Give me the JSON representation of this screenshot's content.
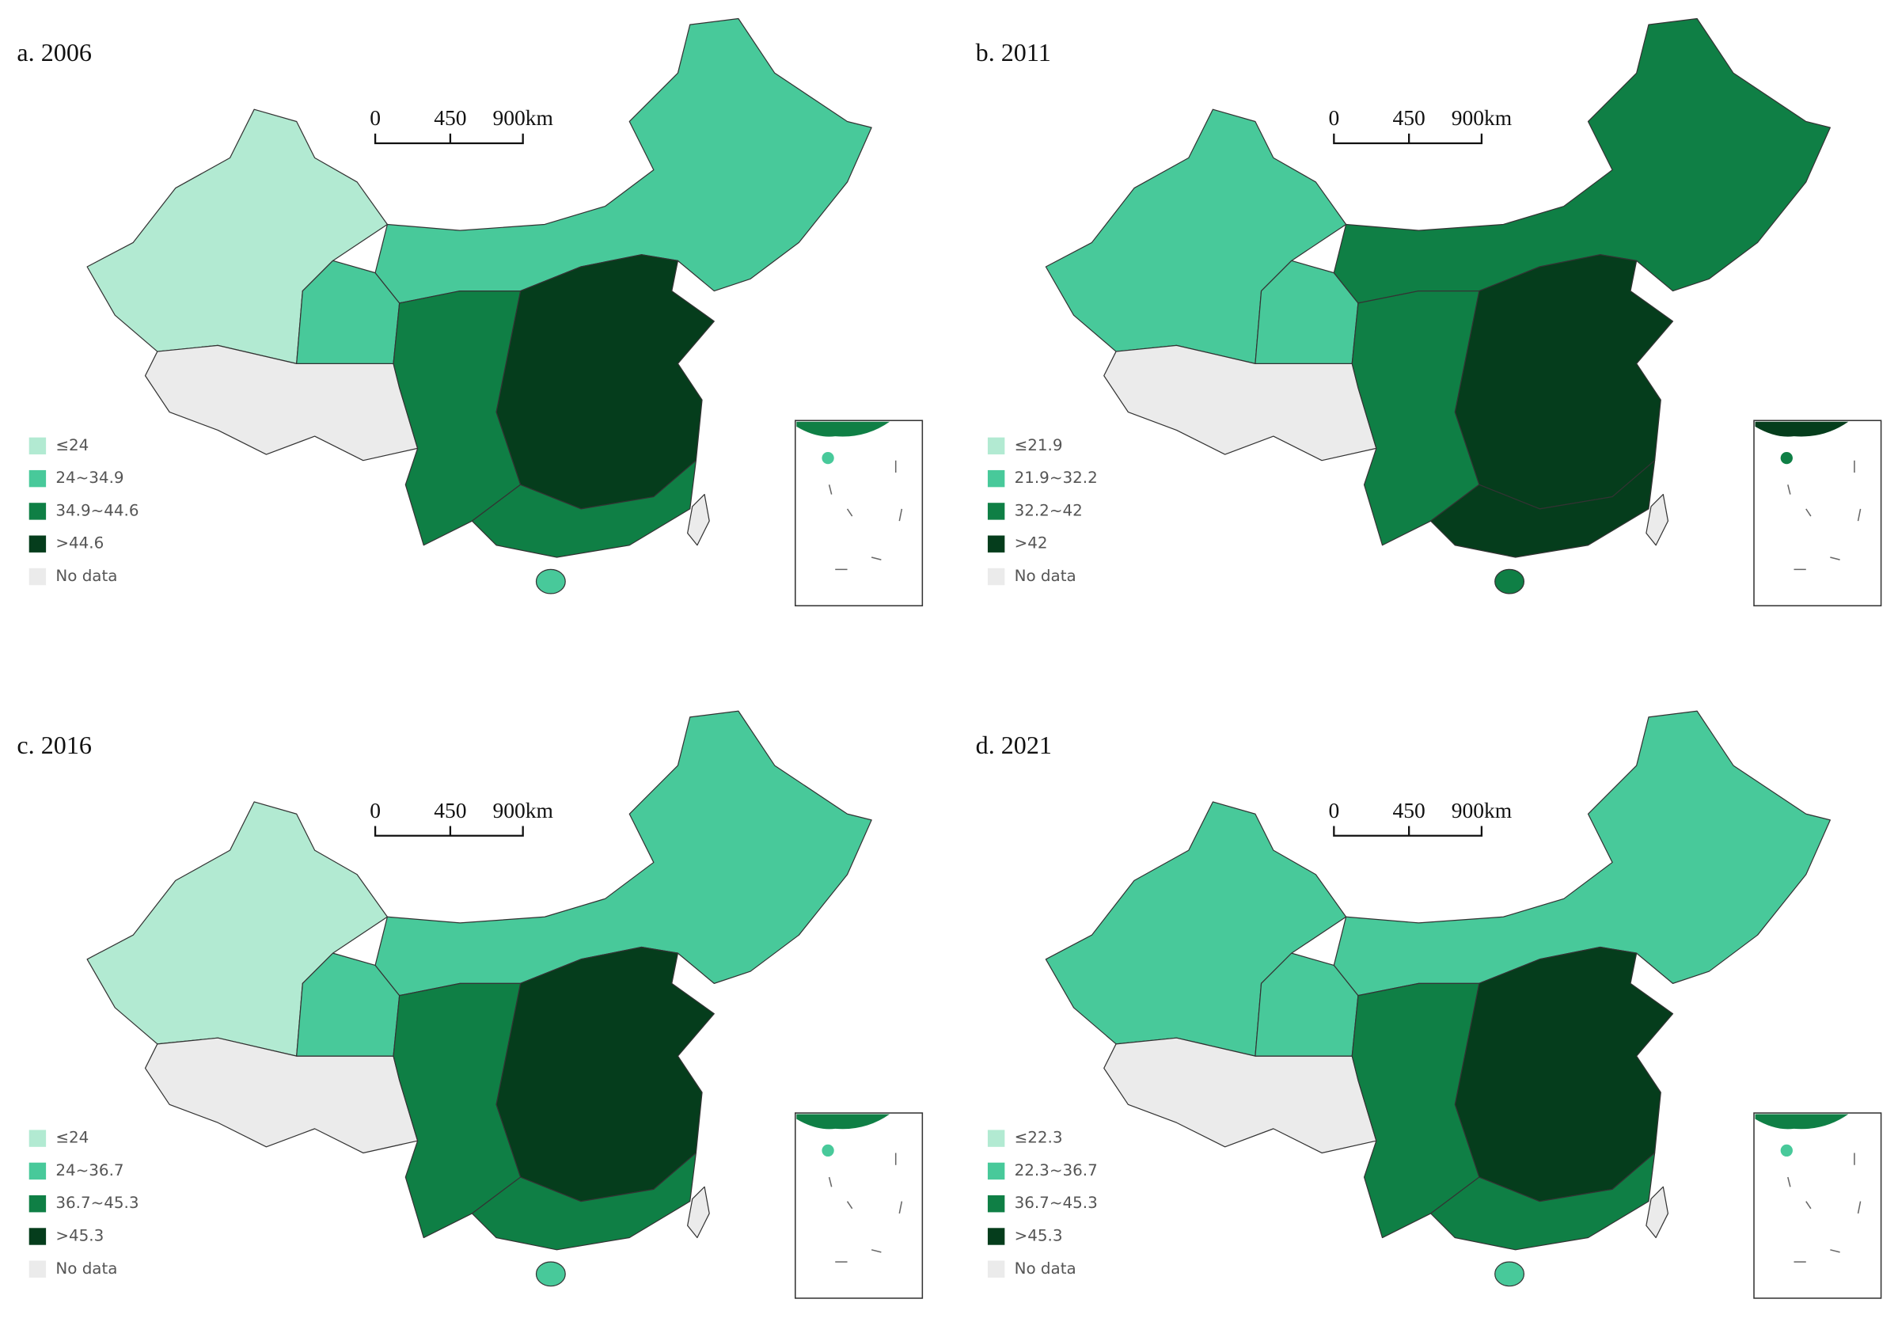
{
  "panels": [
    {
      "title": "a. 2006",
      "scale": [
        "0",
        "450",
        "900km"
      ],
      "legend": [
        "≤24",
        "24~34.9",
        "34.9~44.6",
        ">44.6",
        "No data"
      ]
    },
    {
      "title": "b. 2011",
      "scale": [
        "0",
        "450",
        "900km"
      ],
      "legend": [
        "≤21.9",
        "21.9~32.2",
        "32.2~42",
        ">42",
        "No data"
      ]
    },
    {
      "title": "c. 2016",
      "scale": [
        "0",
        "450",
        "900km"
      ],
      "legend": [
        "≤24",
        "24~36.7",
        "36.7~45.3",
        ">45.3",
        "No data"
      ]
    },
    {
      "title": "d. 2021",
      "scale": [
        "0",
        "450",
        "900km"
      ],
      "legend": [
        "≤22.3",
        "22.3~36.7",
        "36.7~45.3",
        ">45.3",
        "No data"
      ]
    }
  ]
}
